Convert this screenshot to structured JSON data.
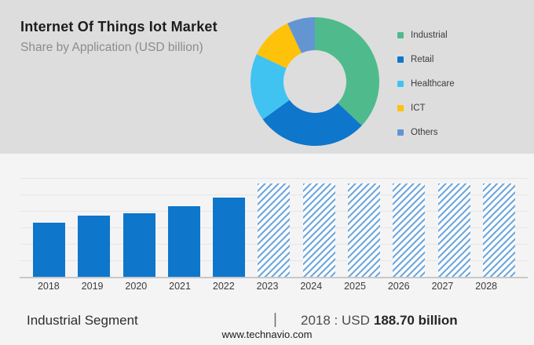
{
  "header": {
    "title": "Internet Of Things Iot Market",
    "subtitle": "Share by Application (USD billion)"
  },
  "chart_data": [
    {
      "type": "pie",
      "subtype": "donut",
      "title": "Share by Application (USD billion)",
      "legend_position": "right",
      "segments": [
        {
          "label": "Industrial",
          "percent": 37,
          "color": "#4FBB8C"
        },
        {
          "label": "Retail",
          "percent": 28,
          "color": "#0E76CB"
        },
        {
          "label": "Healthcare",
          "percent": 17,
          "color": "#41C3F2"
        },
        {
          "label": "ICT",
          "percent": 11,
          "color": "#FFC20A"
        },
        {
          "label": "Others",
          "percent": 7,
          "color": "#6295D2"
        }
      ]
    },
    {
      "type": "bar",
      "categories": [
        "2018",
        "2019",
        "2020",
        "2021",
        "2022",
        "2023",
        "2024",
        "2025",
        "2026",
        "2027",
        "2028"
      ],
      "series": [
        {
          "name": "Industrial Segment",
          "values": [
            188.7,
            213,
            220,
            245,
            276,
            null,
            null,
            null,
            null,
            null,
            null
          ]
        }
      ],
      "unit": "USD billion",
      "ylim": [
        0,
        343
      ],
      "grid": true,
      "bar_color": "#0E76CB",
      "forecast": {
        "years": [
          "2023",
          "2024",
          "2025",
          "2026",
          "2027",
          "2028"
        ],
        "style": "hatched",
        "hatch_color": "#6FA8DC",
        "background": "#FCFDFF",
        "height_frac": 0.945
      },
      "annotation": "2018 : USD 188.70 billion"
    }
  ],
  "footer": {
    "segment_label": "Industrial Segment",
    "separator": "|",
    "value_prefix": "2018 : USD",
    "value_amount": "188.70 billion",
    "website": "www.technavio.com"
  }
}
